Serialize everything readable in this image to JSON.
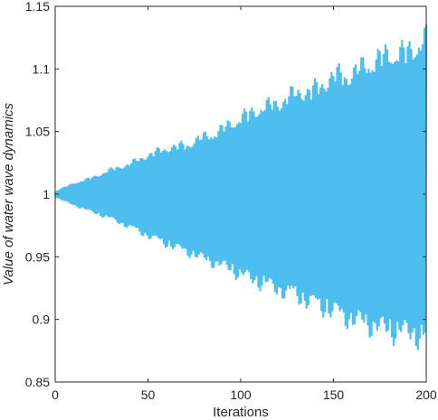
{
  "chart_data": {
    "type": "line",
    "title": "",
    "xlabel": "Iterations",
    "ylabel": "Value of water wave dynamics",
    "xlim": [
      0,
      200
    ],
    "ylim": [
      0.85,
      1.15
    ],
    "xticks": [
      "0",
      "50",
      "100",
      "150",
      "200"
    ],
    "yticks": [
      "0.85",
      "0.9",
      "0.95",
      "1",
      "1.05",
      "1.1",
      "1.15"
    ],
    "grid": false,
    "legend": "none",
    "series": [
      {
        "color": "#4DBEEE",
        "x": [
          0,
          10,
          20,
          30,
          40,
          50,
          60,
          70,
          80,
          90,
          100,
          110,
          120,
          130,
          140,
          150,
          160,
          170,
          180,
          190,
          200
        ],
        "upper_envelope": [
          1.002,
          1.009,
          1.014,
          1.021,
          1.026,
          1.034,
          1.04,
          1.043,
          1.05,
          1.057,
          1.067,
          1.075,
          1.08,
          1.089,
          1.092,
          1.104,
          1.106,
          1.116,
          1.123,
          1.125,
          1.137
        ],
        "lower_envelope": [
          0.998,
          0.991,
          0.985,
          0.979,
          0.972,
          0.964,
          0.957,
          0.951,
          0.944,
          0.938,
          0.93,
          0.923,
          0.917,
          0.911,
          0.904,
          0.897,
          0.89,
          0.885,
          0.88,
          0.878,
          0.873
        ]
      }
    ]
  }
}
